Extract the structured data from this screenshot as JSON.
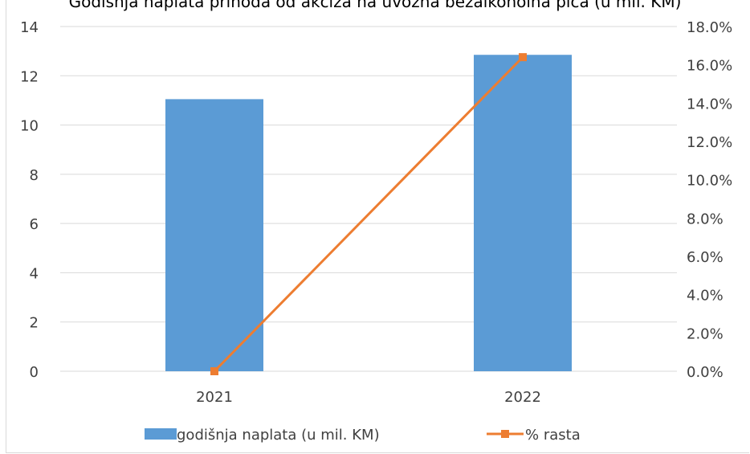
{
  "chart_data": {
    "type": "bar",
    "title": "Godišnja naplata prihoda od akciza na uvozna bezalkoholna pića (u mil. KM)",
    "categories": [
      "2021",
      "2022"
    ],
    "series": [
      {
        "name": "godišnja naplata (u mil. KM)",
        "type": "bar",
        "axis": "left",
        "values": [
          11.05,
          12.85
        ],
        "color": "#5b9bd5"
      },
      {
        "name": "% rasta",
        "type": "line",
        "axis": "right",
        "values": [
          0.0,
          16.4
        ],
        "color": "#ed7d31"
      }
    ],
    "ylim_left": [
      0,
      14
    ],
    "yticks_left": [
      "0",
      "2",
      "4",
      "6",
      "8",
      "10",
      "12",
      "14"
    ],
    "ylim_right": [
      0,
      18
    ],
    "yticks_right": [
      "0.0%",
      "2.0%",
      "4.0%",
      "6.0%",
      "8.0%",
      "10.0%",
      "12.0%",
      "14.0%",
      "16.0%",
      "18.0%"
    ],
    "grid": true,
    "legend_position": "bottom"
  }
}
